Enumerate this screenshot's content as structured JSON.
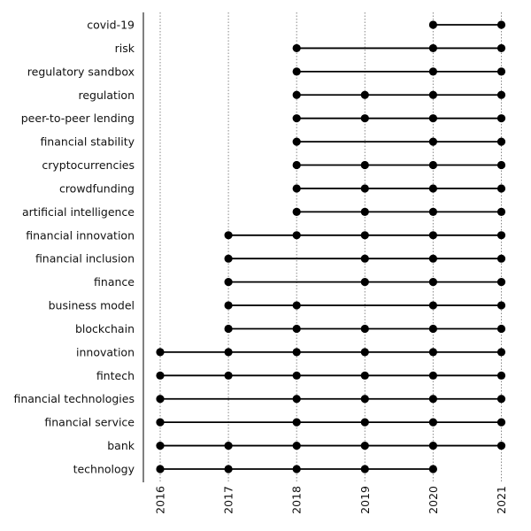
{
  "chart_data": {
    "type": "scatter",
    "title": "",
    "xlabel": "",
    "ylabel": "",
    "x_ticks": [
      "2016",
      "2017",
      "2018",
      "2019",
      "2020",
      "2021"
    ],
    "xlim": [
      2015.75,
      2021.05
    ],
    "grid": "vertical dotted",
    "legend": "none",
    "marker_color": "#000000",
    "line_color": "#000000",
    "grid_color": "#888888",
    "series": [
      {
        "label": "covid-19",
        "years": [
          2020,
          2021
        ]
      },
      {
        "label": "risk",
        "years": [
          2018,
          2020,
          2021
        ]
      },
      {
        "label": "regulatory sandbox",
        "years": [
          2018,
          2020,
          2021
        ]
      },
      {
        "label": "regulation",
        "years": [
          2018,
          2019,
          2020,
          2021
        ]
      },
      {
        "label": "peer-to-peer lending",
        "years": [
          2018,
          2019,
          2020,
          2021
        ]
      },
      {
        "label": "financial stability",
        "years": [
          2018,
          2020,
          2021
        ]
      },
      {
        "label": "cryptocurrencies",
        "years": [
          2018,
          2019,
          2020,
          2021
        ]
      },
      {
        "label": "crowdfunding",
        "years": [
          2018,
          2019,
          2020,
          2021
        ]
      },
      {
        "label": "artificial intelligence",
        "years": [
          2018,
          2019,
          2020,
          2021
        ]
      },
      {
        "label": "financial innovation",
        "years": [
          2017,
          2018,
          2019,
          2020,
          2021
        ]
      },
      {
        "label": "financial inclusion",
        "years": [
          2017,
          2019,
          2020,
          2021
        ]
      },
      {
        "label": "finance",
        "years": [
          2017,
          2019,
          2020,
          2021
        ]
      },
      {
        "label": "business model",
        "years": [
          2017,
          2018,
          2020,
          2021
        ]
      },
      {
        "label": "blockchain",
        "years": [
          2017,
          2018,
          2019,
          2020,
          2021
        ]
      },
      {
        "label": "innovation",
        "years": [
          2016,
          2017,
          2018,
          2019,
          2020,
          2021
        ]
      },
      {
        "label": "fintech",
        "years": [
          2016,
          2017,
          2018,
          2019,
          2020,
          2021
        ]
      },
      {
        "label": "financial technologies",
        "years": [
          2016,
          2018,
          2019,
          2020,
          2021
        ]
      },
      {
        "label": "financial service",
        "years": [
          2016,
          2018,
          2019,
          2020,
          2021
        ]
      },
      {
        "label": "bank",
        "years": [
          2016,
          2017,
          2018,
          2019,
          2020,
          2021
        ]
      },
      {
        "label": "technology",
        "years": [
          2016,
          2017,
          2018,
          2019,
          2020
        ]
      }
    ]
  }
}
